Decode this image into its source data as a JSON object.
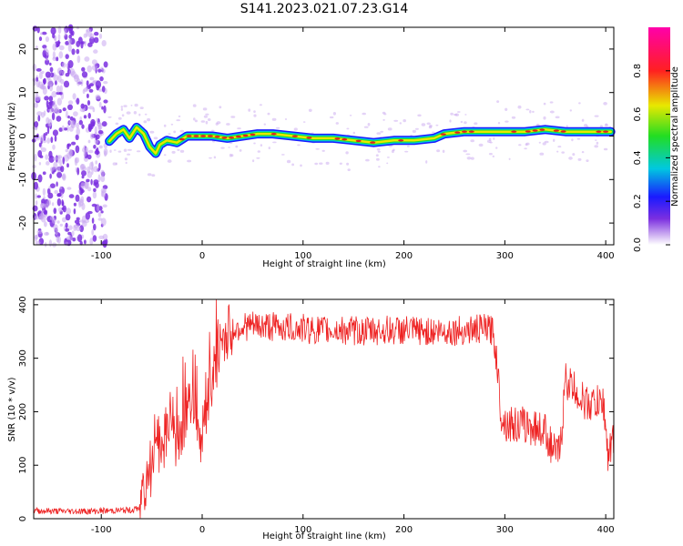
{
  "title": "S141.2023.021.07.23.G14",
  "colors": {
    "snr_line": "#ee2222",
    "ridge_core": "#e02020",
    "ridge_yellow": "#e8e800",
    "ridge_green": "#22dd22",
    "ridge_cyan": "#00c8e0",
    "ridge_blue": "#1a1aff",
    "noise_purple": "#7b2fe0",
    "noise_light": "#c9a8f0"
  },
  "chart_data": [
    {
      "type": "heatmap",
      "xlabel": "Height of straight line (km)",
      "ylabel": "Frequency (Hz)",
      "xlim": [
        -167,
        408
      ],
      "ylim": [
        -25,
        25
      ],
      "x_ticks": [
        -100,
        0,
        100,
        200,
        300,
        400
      ],
      "x_tick_labels": [
        "-100",
        "0",
        "100",
        "200",
        "300",
        "400"
      ],
      "y_ticks": [
        -20,
        -10,
        0,
        10,
        20
      ],
      "y_tick_labels": [
        "-20",
        "-10",
        "0",
        "10",
        "20"
      ],
      "colorbar": {
        "label": "Normalized spectral amplitude",
        "range": [
          0,
          1
        ],
        "ticks": [
          0.0,
          0.2,
          0.4,
          0.6,
          0.8
        ],
        "tick_labels": [
          "0.0",
          "0.2",
          "0.4",
          "0.6",
          "0.8"
        ],
        "colormap": "rainbow, white-violet at 0 to magenta at 1"
      },
      "ridge": {
        "x": [
          -92,
          -85,
          -78,
          -72,
          -65,
          -58,
          -52,
          -46,
          -42,
          -35,
          -25,
          -15,
          -5,
          10,
          25,
          40,
          55,
          70,
          90,
          110,
          130,
          150,
          170,
          190,
          210,
          230,
          240,
          260,
          280,
          300,
          320,
          340,
          360,
          380,
          405
        ],
        "frequency": [
          -1.2,
          0.5,
          1.5,
          -0.5,
          2.0,
          0.5,
          -2.5,
          -4.0,
          -2.0,
          -1.0,
          -1.5,
          0.0,
          0.0,
          0.0,
          -0.5,
          0.0,
          0.5,
          0.5,
          0.0,
          -0.5,
          -0.5,
          -1.0,
          -1.5,
          -1.0,
          -1.0,
          -0.5,
          0.5,
          1.0,
          1.0,
          1.0,
          1.0,
          1.5,
          1.0,
          1.0,
          1.0
        ]
      },
      "noise_region": {
        "x_from": -167,
        "x_to": -95
      }
    },
    {
      "type": "line",
      "xlabel": "Height of straight line (km)",
      "ylabel": "SNR (10 * v/v)",
      "xlim": [
        -167,
        408
      ],
      "ylim": [
        0,
        410
      ],
      "x_ticks": [
        -100,
        0,
        100,
        200,
        300,
        400
      ],
      "x_tick_labels": [
        "-100",
        "0",
        "100",
        "200",
        "300",
        "400"
      ],
      "y_ticks": [
        0,
        100,
        200,
        300,
        400
      ],
      "y_tick_labels": [
        "0",
        "100",
        "200",
        "300",
        "400"
      ],
      "series": [
        {
          "x": [
            -167,
            -140,
            -110,
            -90,
            -70,
            -62,
            -58,
            -50,
            -45,
            -40,
            -35,
            -30,
            -25,
            -20,
            -15,
            -10,
            -5,
            0,
            5,
            10,
            15,
            20,
            25,
            30,
            40,
            60,
            80,
            100,
            120,
            140,
            160,
            180,
            200,
            220,
            240,
            260,
            280,
            288,
            292,
            296,
            300,
            310,
            320,
            330,
            340,
            345,
            350,
            355,
            360,
            370,
            380,
            390,
            398,
            402,
            408
          ],
          "y": [
            15,
            14,
            14,
            15,
            16,
            20,
            60,
            100,
            150,
            120,
            160,
            200,
            120,
            180,
            200,
            230,
            180,
            150,
            220,
            260,
            300,
            330,
            345,
            355,
            360,
            360,
            358,
            355,
            352,
            352,
            350,
            352,
            352,
            350,
            350,
            352,
            355,
            352,
            300,
            200,
            180,
            175,
            175,
            170,
            165,
            140,
            120,
            130,
            260,
            240,
            215,
            215,
            215,
            120,
            150
          ]
        }
      ]
    }
  ]
}
